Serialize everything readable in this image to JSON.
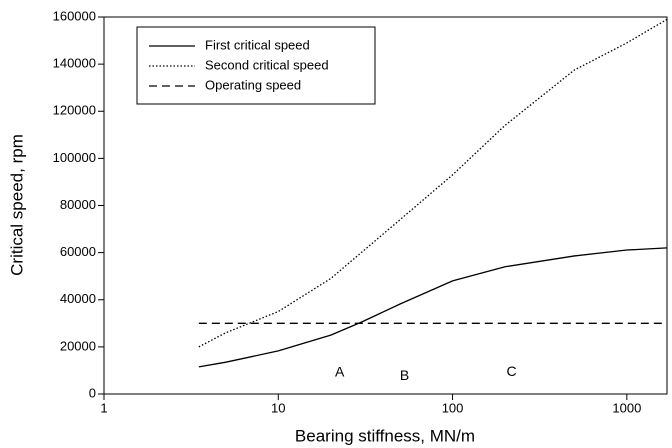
{
  "chart_data": {
    "type": "line",
    "xlabel": "Bearing stiffness, MN/m",
    "ylabel": "Critical speed, rpm",
    "xscale": "log",
    "xlim": [
      1,
      1700
    ],
    "xticks": [
      1,
      10,
      100,
      1000
    ],
    "ylim": [
      0,
      160000
    ],
    "yticks": [
      0,
      20000,
      40000,
      60000,
      80000,
      100000,
      120000,
      140000,
      160000
    ],
    "legend": "upper left",
    "series": [
      {
        "name": "First critical speed",
        "color": "#000000",
        "style": "solid",
        "x": [
          3.5,
          5,
          10,
          20,
          30,
          50,
          100,
          200,
          500,
          1000,
          1700
        ],
        "values": [
          11500,
          13500,
          18300,
          25000,
          30500,
          38200,
          48000,
          54000,
          58600,
          61100,
          62000
        ]
      },
      {
        "name": "Second critical speed",
        "color": "#000000",
        "style": "dotted",
        "x": [
          3.5,
          5,
          10,
          20,
          50,
          100,
          200,
          500,
          1000,
          1700
        ],
        "values": [
          20000,
          26000,
          35000,
          49000,
          74000,
          93000,
          114000,
          137500,
          149000,
          159000
        ]
      },
      {
        "name": "Operating speed",
        "color": "#000000",
        "style": "dashed",
        "x": [
          3.5,
          1700
        ],
        "values": [
          30000,
          30000
        ]
      }
    ],
    "annotations": [
      {
        "text": "A",
        "x": 22.5,
        "y": 9000
      },
      {
        "text": "B",
        "x": 53,
        "y": 7600
      },
      {
        "text": "C",
        "x": 218,
        "y": 9300
      }
    ]
  }
}
